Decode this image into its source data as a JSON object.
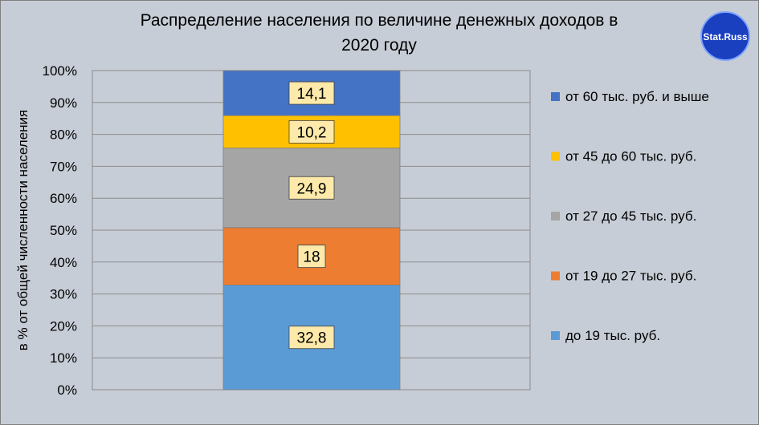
{
  "chart_data": {
    "type": "bar",
    "stacked": true,
    "title": "Распределение населения по величине денежных доходов в 2020 году",
    "title_lines": [
      "Распределение населения по величине денежных доходов в",
      "2020 году"
    ],
    "ylabel": "в % от общей численности  населения",
    "ylim": [
      0,
      100
    ],
    "yticks": [
      "0%",
      "10%",
      "20%",
      "30%",
      "40%",
      "50%",
      "60%",
      "70%",
      "80%",
      "90%",
      "100%"
    ],
    "grid": true,
    "legend_position": "right",
    "categories": [
      "2020"
    ],
    "series": [
      {
        "name": "до 19 тыс. руб.",
        "values": [
          32.8
        ],
        "label": "32,8",
        "color": "#5b9bd5"
      },
      {
        "name": "от 19 до 27 тыс. руб.",
        "values": [
          18
        ],
        "label": "18",
        "color": "#ed7d31"
      },
      {
        "name": "от 27 до 45 тыс. руб.",
        "values": [
          24.9
        ],
        "label": "24,9",
        "color": "#a5a5a5"
      },
      {
        "name": "от 45 до 60 тыс. руб.",
        "values": [
          10.2
        ],
        "label": "10,2",
        "color": "#ffc000"
      },
      {
        "name": "от 60 тыс. руб. и выше",
        "values": [
          14.1
        ],
        "label": "14,1",
        "color": "#4472c4"
      }
    ],
    "data_label_fill": "#fde9a9",
    "plot_background": "#c7cdd6"
  },
  "logo": {
    "text": "Stat.Russ",
    "color": "#1a3fbf"
  }
}
